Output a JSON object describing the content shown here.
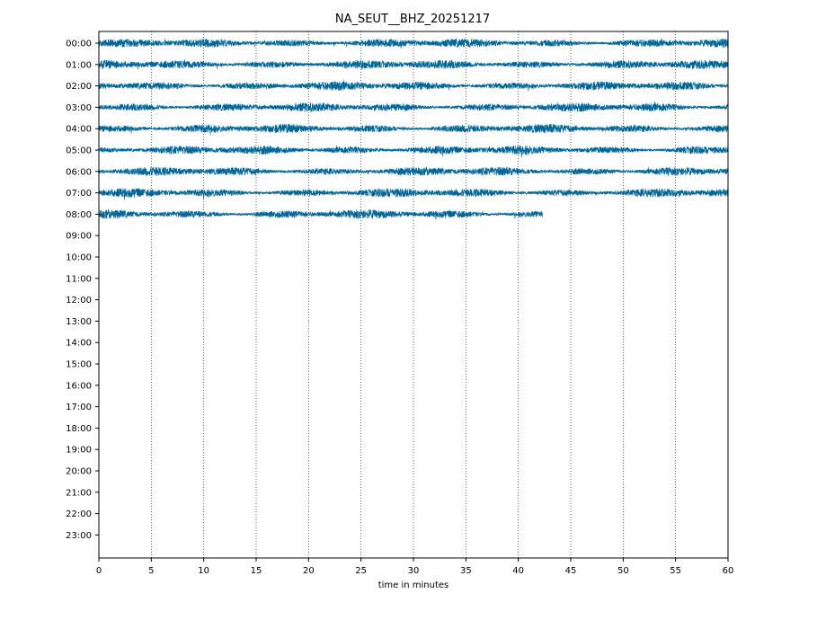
{
  "chart_data": {
    "type": "line",
    "title": "NA_SEUT__BHZ_20251217",
    "xlabel": "time in minutes",
    "ylabel": "",
    "xlim": [
      0,
      60
    ],
    "x_ticks": [
      0,
      5,
      10,
      15,
      20,
      25,
      30,
      35,
      40,
      45,
      50,
      55,
      60
    ],
    "y_tick_labels": [
      "00:00",
      "01:00",
      "02:00",
      "03:00",
      "04:00",
      "05:00",
      "06:00",
      "07:00",
      "08:00",
      "09:00",
      "10:00",
      "11:00",
      "12:00",
      "13:00",
      "14:00",
      "15:00",
      "16:00",
      "17:00",
      "18:00",
      "19:00",
      "20:00",
      "21:00",
      "22:00",
      "23:00"
    ],
    "vertical_grid": true,
    "grid_style": "dotted",
    "trace_color": "#006699",
    "series": [
      {
        "hour": "00:00",
        "start_min": 0,
        "end_min": 60
      },
      {
        "hour": "01:00",
        "start_min": 0,
        "end_min": 60
      },
      {
        "hour": "02:00",
        "start_min": 0,
        "end_min": 60
      },
      {
        "hour": "03:00",
        "start_min": 0,
        "end_min": 60
      },
      {
        "hour": "04:00",
        "start_min": 0,
        "end_min": 60
      },
      {
        "hour": "05:00",
        "start_min": 0,
        "end_min": 60
      },
      {
        "hour": "06:00",
        "start_min": 0,
        "end_min": 60
      },
      {
        "hour": "07:00",
        "start_min": 0,
        "end_min": 60
      },
      {
        "hour": "08:00",
        "start_min": 0,
        "end_min": 42.3
      }
    ]
  }
}
